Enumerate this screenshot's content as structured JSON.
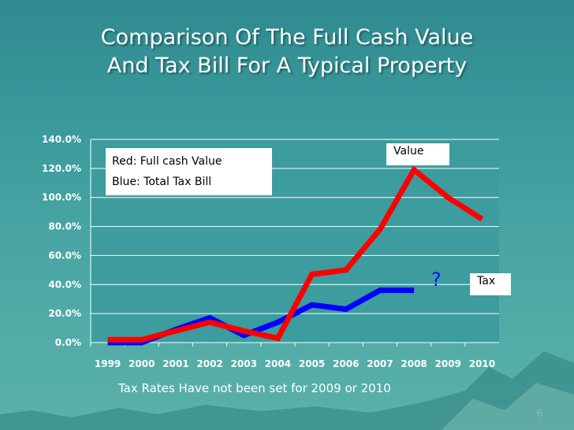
{
  "title_line1": "Comparison Of The Full Cash Value",
  "title_line2": "And Tax Bill For A Typical Property",
  "note": "Tax Rates Have not been set for 2009 or 2010",
  "page_number": "6",
  "colors": {
    "value_series": "#ff0000",
    "tax_series": "#0000ff",
    "plot_bg": "#3c9c9e",
    "question_mark": "#1010ee"
  },
  "legend": {
    "line1": "Red: Full cash Value",
    "line2": "Blue: Total Tax Bill"
  },
  "annotations": {
    "value_label": "Value",
    "tax_label": "Tax",
    "question_mark": "?"
  },
  "chart_data": {
    "type": "line",
    "categories": [
      "1999",
      "2000",
      "2001",
      "2002",
      "2003",
      "2004",
      "2005",
      "2006",
      "2007",
      "2008",
      "2009",
      "2010"
    ],
    "y_ticks": [
      "0.0%",
      "20.0%",
      "40.0%",
      "60.0%",
      "80.0%",
      "100.0%",
      "120.0%",
      "140.0%"
    ],
    "ylim": [
      0,
      140
    ],
    "grid": true,
    "series": [
      {
        "name": "Full cash Value",
        "color": "#ff0000",
        "values": [
          2,
          2,
          8,
          14,
          8,
          3,
          47,
          50,
          78,
          119,
          100,
          85
        ]
      },
      {
        "name": "Total Tax Bill",
        "color": "#0000ff",
        "values": [
          0,
          0,
          9,
          17,
          5,
          14,
          26,
          23,
          36,
          36,
          null,
          null
        ]
      }
    ]
  }
}
